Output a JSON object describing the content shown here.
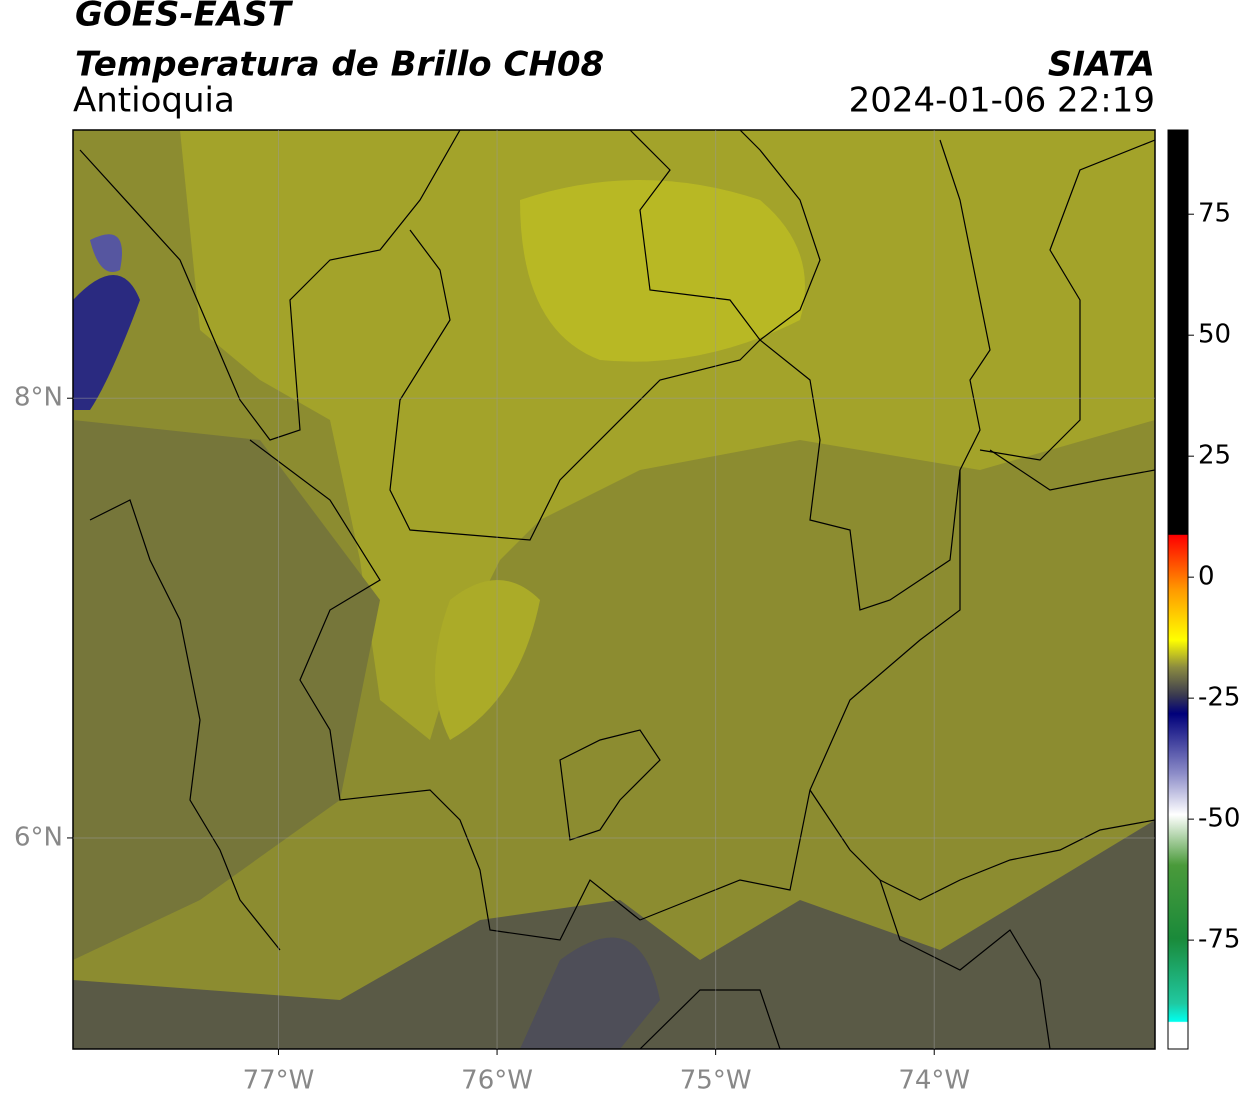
{
  "header": {
    "title": "GOES-EAST",
    "subtitle": "Temperatura de Brillo CH08",
    "region": "Antioquia",
    "source": "SIATA",
    "datetime": "2024-01-06 22:19"
  },
  "map": {
    "xlim": [
      -77.94,
      -72.99
    ],
    "ylim": [
      5.04,
      9.22
    ],
    "xticks": [
      {
        "value": -77,
        "label": "77°W"
      },
      {
        "value": -76,
        "label": "76°W"
      },
      {
        "value": -75,
        "label": "75°W"
      },
      {
        "value": -74,
        "label": "74°W"
      }
    ],
    "yticks": [
      {
        "value": 8,
        "label": "8°N"
      },
      {
        "value": 6,
        "label": "6°N"
      }
    ],
    "grid": true
  },
  "colorbar": {
    "lim": [
      -97.5,
      92.4
    ],
    "ticks": [
      75,
      50,
      25,
      0,
      -25,
      -50,
      -75
    ]
  }
}
